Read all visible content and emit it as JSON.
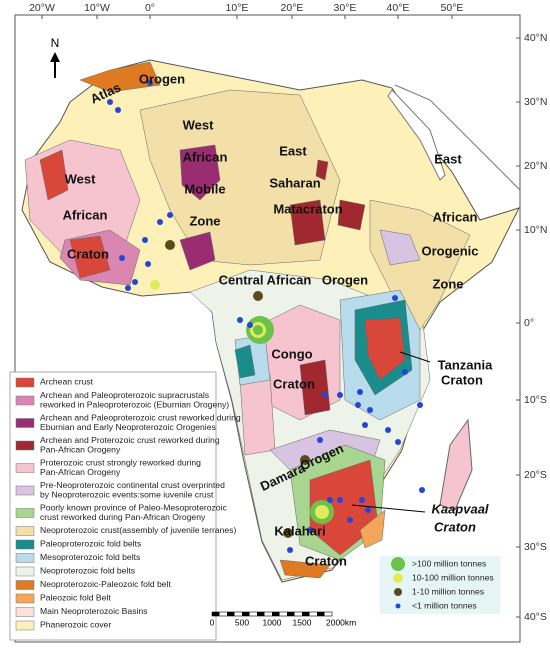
{
  "axes": {
    "longitude": [
      "20°W",
      "10°W",
      "0°",
      "10°E",
      "20°E",
      "30°E",
      "40°E",
      "50°E"
    ],
    "latitude": [
      "40°N",
      "30°N",
      "20°N",
      "10°N",
      "0°",
      "10°S",
      "20°S",
      "30°S",
      "40°S"
    ]
  },
  "north": "N",
  "regions": [
    {
      "lines": [
        "Atlas",
        "Orogen"
      ]
    },
    {
      "lines": [
        "West",
        "African",
        "Mobile",
        "Zone"
      ]
    },
    {
      "lines": [
        "East",
        "Saharan",
        "Matacraton"
      ]
    },
    {
      "lines": [
        "West",
        "African",
        "Craton"
      ]
    },
    {
      "lines": [
        "East",
        "African",
        "Orogenic",
        "Zone"
      ]
    },
    {
      "lines": [
        "Central African",
        "Orogen"
      ]
    },
    {
      "lines": [
        "Congo",
        "Craton"
      ]
    },
    {
      "lines": [
        "Tanzania",
        "Craton"
      ]
    },
    {
      "lines": [
        "Damara",
        "Orogen"
      ]
    },
    {
      "lines": [
        "Kalahari",
        "Craton"
      ]
    },
    {
      "lines": [
        "Kaapvaal",
        "Craton"
      ]
    }
  ],
  "legend": {
    "items": [
      {
        "lines": [
          "Archean crust"
        ],
        "color": "#d9473a"
      },
      {
        "lines": [
          "Archean and Paleoproterozoic supracrustals",
          "reworked in Paleoproterozoic (Eburnian Orogeny)"
        ],
        "color": "#d987b0"
      },
      {
        "lines": [
          "Archean and Paleoproterozoic crust reworked during",
          "Eburnian and Early Neoproterozoic Orogenies"
        ],
        "color": "#9a2d72"
      },
      {
        "lines": [
          "Archean and Proterozoic crust reworked during",
          "Pan-African Orogeny"
        ],
        "color": "#a0282e"
      },
      {
        "lines": [
          "Proterozoic crust strongly reworked during",
          "Pan-African Orogeny"
        ],
        "color": "#f6c4cf"
      },
      {
        "lines": [
          "Pre-Neoproterozoic continental crust overprinted",
          "by Neoproterozoic events:some iuvenile crust"
        ],
        "color": "#d8c4e2"
      },
      {
        "lines": [
          "Poorly known province of Paleo-Mesoproterozoic",
          "crust reworked during Pan-African Orogeny"
        ],
        "color": "#a8d590"
      },
      {
        "lines": [
          "Neoproterozoic crust(assembly of juvenile terranes)"
        ],
        "color": "#f3dfa8"
      },
      {
        "lines": [
          "Paleoproterozoic fold belts"
        ],
        "color": "#1a8c8c"
      },
      {
        "lines": [
          "Mesoproterozoic fold belts"
        ],
        "color": "#b8dcec"
      },
      {
        "lines": [
          "Neoproterozoic fold belts"
        ],
        "color": "#eef3ea"
      },
      {
        "lines": [
          "Neoproterozoic-Paleozoic fold belt"
        ],
        "color": "#e07a22"
      },
      {
        "lines": [
          "Paleozoic fold Belt"
        ],
        "color": "#f3a65a"
      },
      {
        "lines": [
          "Main Neoproterozoic Basins"
        ],
        "color": "#fbe2dc"
      },
      {
        "lines": [
          "Phanerozoic cover"
        ],
        "color": "#fdf1b9"
      }
    ]
  },
  "deposits": {
    "items": [
      {
        "label": ">100 million tonnes",
        "color": "#6cc24a"
      },
      {
        "label": "10-100 million tonnes",
        "color": "#e2ec5a"
      },
      {
        "label": "1-10 million tonnes",
        "color": "#5b4a1c"
      },
      {
        "label": "<1 million tonnes",
        "color": "#2346d8"
      }
    ]
  },
  "scale": {
    "ticks": [
      "0",
      "500",
      "1000",
      "1500",
      "2000km"
    ]
  }
}
